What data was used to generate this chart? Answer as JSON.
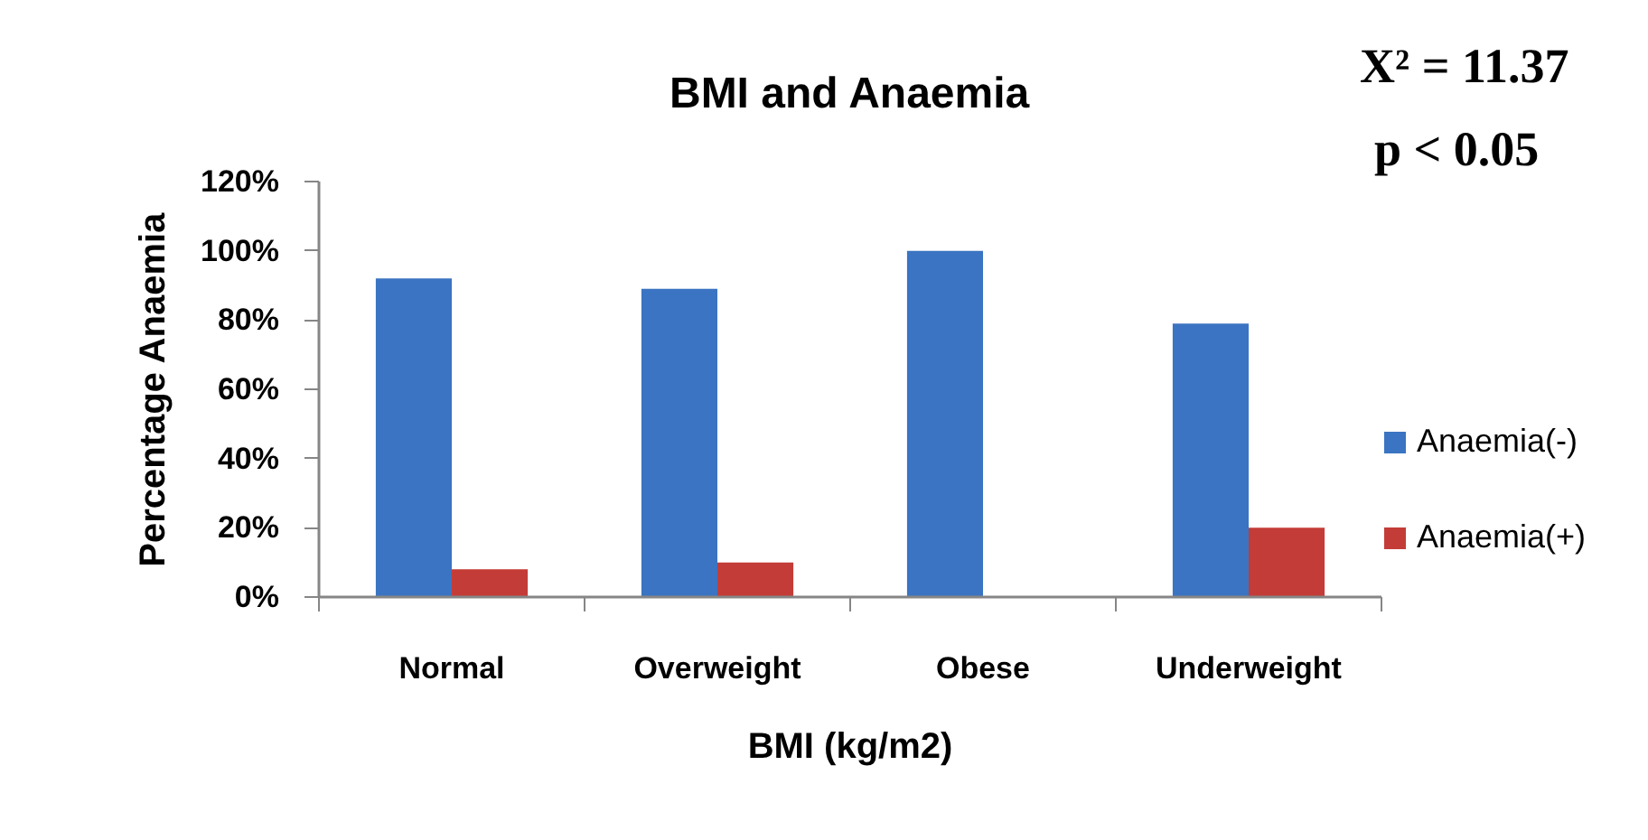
{
  "chart_data": {
    "type": "bar",
    "title": "BMI and Anaemia",
    "xlabel": "BMI (kg/m2)",
    "ylabel": "Percentage Anaemia",
    "annotations": [
      "X² = 11.37",
      "p < 0.05"
    ],
    "categories": [
      "Normal",
      "Overweight",
      "Obese",
      "Underweight"
    ],
    "series": [
      {
        "name": "Anaemia(-)",
        "color": "#3a74c2",
        "values": [
          92,
          89,
          100,
          79
        ]
      },
      {
        "name": "Anaemia(+)",
        "color": "#c43c37",
        "values": [
          8,
          10,
          0,
          20
        ]
      }
    ],
    "ylim": [
      0,
      120
    ],
    "yticks": [
      {
        "value": 0,
        "label": "0%"
      },
      {
        "value": 20,
        "label": "20%"
      },
      {
        "value": 40,
        "label": "40%"
      },
      {
        "value": 60,
        "label": "60%"
      },
      {
        "value": 80,
        "label": "80%"
      },
      {
        "value": 100,
        "label": "100%"
      },
      {
        "value": 120,
        "label": "120%"
      }
    ],
    "legend": "right"
  }
}
